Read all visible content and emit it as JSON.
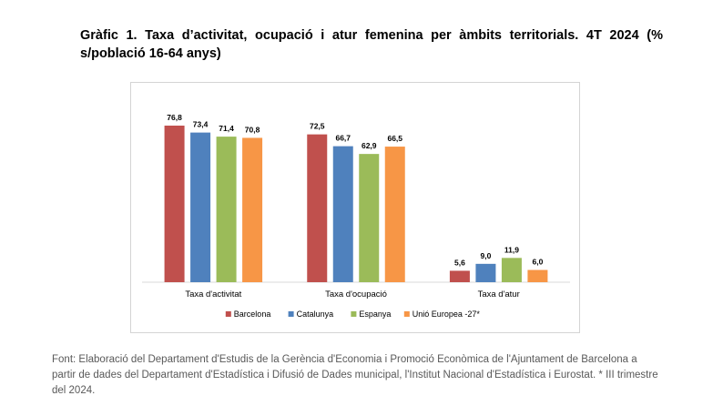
{
  "title": "Gràfic 1. Taxa d’activitat, ocupació i atur femenina per àmbits territorials. 4T 2024 (% s/població 16-64 anys)",
  "source": "Font: Elaboració del Departament d'Estudis de la Gerència d'Economia i Promoció Econòmica de l'Ajuntament de Barcelona a partir de dades del Departament d'Estadística i Difusió de Dades municipal, l'Institut Nacional d'Estadística i Eurostat.  * III trimestre del 2024.",
  "chart_data": {
    "type": "bar",
    "title": "",
    "xlabel": "",
    "ylabel": "",
    "ylim": [
      0,
      80
    ],
    "grid": false,
    "legend_position": "bottom",
    "categories": [
      "Taxa d'activitat",
      "Taxa d'ocupació",
      "Taxa d'atur"
    ],
    "series": [
      {
        "name": "Barcelona",
        "color": "#c0504d",
        "values": [
          76.8,
          72.5,
          5.6
        ],
        "labels": [
          "76,8",
          "72,5",
          "5,6"
        ]
      },
      {
        "name": "Catalunya",
        "color": "#4f81bd",
        "values": [
          73.4,
          66.7,
          9.0
        ],
        "labels": [
          "73,4",
          "66,7",
          "9,0"
        ]
      },
      {
        "name": "Espanya",
        "color": "#9bbb59",
        "values": [
          71.4,
          62.9,
          11.9
        ],
        "labels": [
          "71,4",
          "62,9",
          "11,9"
        ]
      },
      {
        "name": "Unió Europea -27*",
        "color": "#f79646",
        "values": [
          70.8,
          66.5,
          6.0
        ],
        "labels": [
          "70,8",
          "66,5",
          "6,0"
        ]
      }
    ]
  }
}
